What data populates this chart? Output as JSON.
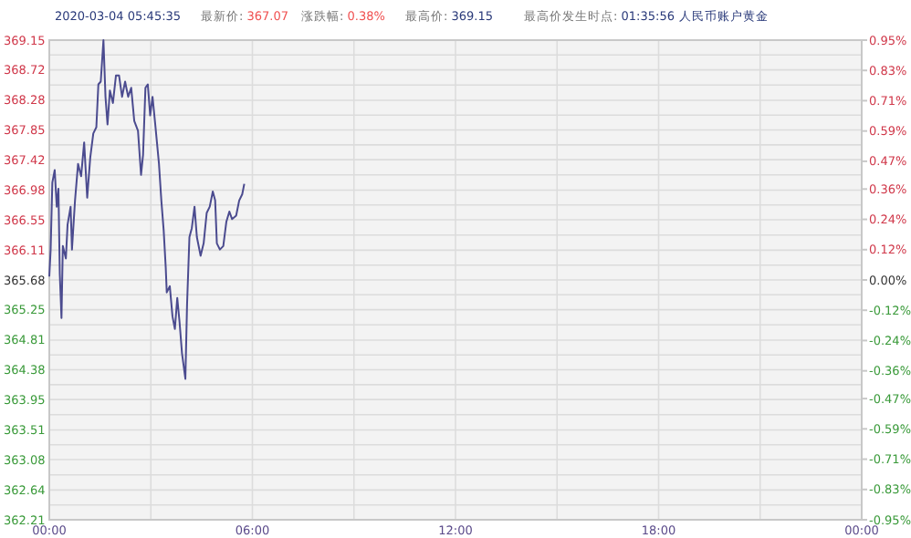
{
  "chart_data": {
    "type": "line",
    "annotations": [
      "2020-03-04 05:45:35",
      "最新价: 367.07",
      "涨跌幅: 0.38%",
      "最高价: 369.15",
      "最高价发生时点: 01:35:56",
      "人民币账户黄金"
    ],
    "x": [
      0,
      0.04,
      0.09,
      0.16,
      0.22,
      0.27,
      0.31,
      0.36,
      0.4,
      0.49,
      0.54,
      0.63,
      0.67,
      0.76,
      0.85,
      0.94,
      1.03,
      1.12,
      1.21,
      1.3,
      1.39,
      1.45,
      1.52,
      1.6,
      1.66,
      1.72,
      1.79,
      1.88,
      1.97,
      2.06,
      2.15,
      2.24,
      2.33,
      2.42,
      2.51,
      2.62,
      2.71,
      2.77,
      2.84,
      2.91,
      2.98,
      3.05,
      3.13,
      3.24,
      3.31,
      3.38,
      3.44,
      3.47,
      3.56,
      3.64,
      3.71,
      3.78,
      3.85,
      3.92,
      4.02,
      4.07,
      4.14,
      4.21,
      4.29,
      4.36,
      4.47,
      4.56,
      4.65,
      4.74,
      4.83,
      4.9,
      4.95,
      5.04,
      5.14,
      5.23,
      5.32,
      5.4,
      5.52,
      5.61,
      5.7,
      5.76
    ],
    "series": [
      {
        "color": "#4b4b8f",
        "values": [
          365.73,
          366.12,
          367.09,
          367.27,
          366.74,
          367.0,
          365.77,
          365.13,
          366.17,
          365.99,
          366.48,
          366.74,
          366.12,
          366.83,
          367.36,
          367.18,
          367.67,
          366.87,
          367.45,
          367.8,
          367.89,
          368.51,
          368.55,
          369.15,
          368.33,
          367.93,
          368.42,
          368.24,
          368.64,
          368.64,
          368.33,
          368.55,
          368.33,
          368.46,
          367.98,
          367.84,
          367.2,
          367.49,
          368.46,
          368.51,
          368.06,
          368.33,
          367.93,
          367.36,
          366.83,
          366.39,
          365.86,
          365.5,
          365.59,
          365.15,
          364.97,
          365.42,
          365.06,
          364.62,
          364.25,
          365.33,
          366.3,
          366.43,
          366.74,
          366.3,
          366.03,
          366.21,
          366.65,
          366.74,
          366.96,
          366.83,
          366.21,
          366.12,
          366.17,
          366.52,
          366.67,
          366.56,
          366.61,
          366.83,
          366.92,
          367.07
        ]
      }
    ],
    "xlim": [
      0,
      24
    ],
    "xticks": [
      {
        "value": 0,
        "label": "00:00"
      },
      {
        "value": 3,
        "label": null
      },
      {
        "value": 6,
        "label": "06:00"
      },
      {
        "value": 9,
        "label": null
      },
      {
        "value": 12,
        "label": "12:00"
      },
      {
        "value": 15,
        "label": null
      },
      {
        "value": 18,
        "label": "18:00"
      },
      {
        "value": 21,
        "label": null
      },
      {
        "value": 24,
        "label": "00:00"
      }
    ],
    "ylim": [
      362.21,
      369.15
    ],
    "yticks": [
      362.21,
      {
        "value": 362.425,
        "label": null
      },
      362.64,
      {
        "value": 362.86,
        "label": null
      },
      363.08,
      {
        "value": 363.295,
        "label": null
      },
      363.51,
      {
        "value": 363.73,
        "label": null
      },
      363.95,
      {
        "value": 364.165,
        "label": null
      },
      364.38,
      {
        "value": 364.595,
        "label": null
      },
      364.81,
      {
        "value": 365.03,
        "label": null
      },
      365.25,
      {
        "value": 365.465,
        "label": null
      },
      365.68,
      {
        "value": 365.895,
        "label": null
      },
      366.11,
      {
        "value": 366.33,
        "label": null
      },
      366.55,
      {
        "value": 366.765,
        "label": null
      },
      366.98,
      {
        "value": 367.2,
        "label": null
      },
      367.42,
      {
        "value": 367.635,
        "label": null
      },
      367.85,
      {
        "value": 368.065,
        "label": null
      },
      368.28,
      {
        "value": 368.5,
        "label": null
      },
      368.72,
      {
        "value": 368.935,
        "label": null
      },
      369.15
    ],
    "y2lim": [
      -0.95,
      0.95
    ],
    "y2ticks": [
      {
        "value": -0.95,
        "label": "-0.95%"
      },
      {
        "value": -0.83,
        "label": "-0.83%"
      },
      {
        "value": -0.71,
        "label": "-0.71%"
      },
      {
        "value": -0.59,
        "label": "-0.59%"
      },
      {
        "value": -0.47,
        "label": "-0.47%"
      },
      {
        "value": -0.36,
        "label": "-0.36%"
      },
      {
        "value": -0.24,
        "label": "-0.24%"
      },
      {
        "value": -0.12,
        "label": "-0.12%"
      },
      {
        "value": 0,
        "label": "0.00%"
      },
      {
        "value": 0.12,
        "label": "0.12%"
      },
      {
        "value": 0.24,
        "label": "0.24%"
      },
      {
        "value": 0.36,
        "label": "0.36%"
      },
      {
        "value": 0.47,
        "label": "0.47%"
      },
      {
        "value": 0.59,
        "label": "0.59%"
      },
      {
        "value": 0.71,
        "label": "0.71%"
      },
      {
        "value": 0.83,
        "label": "0.83%"
      },
      {
        "value": 0.95,
        "label": "0.95%"
      }
    ],
    "grid": true
  }
}
